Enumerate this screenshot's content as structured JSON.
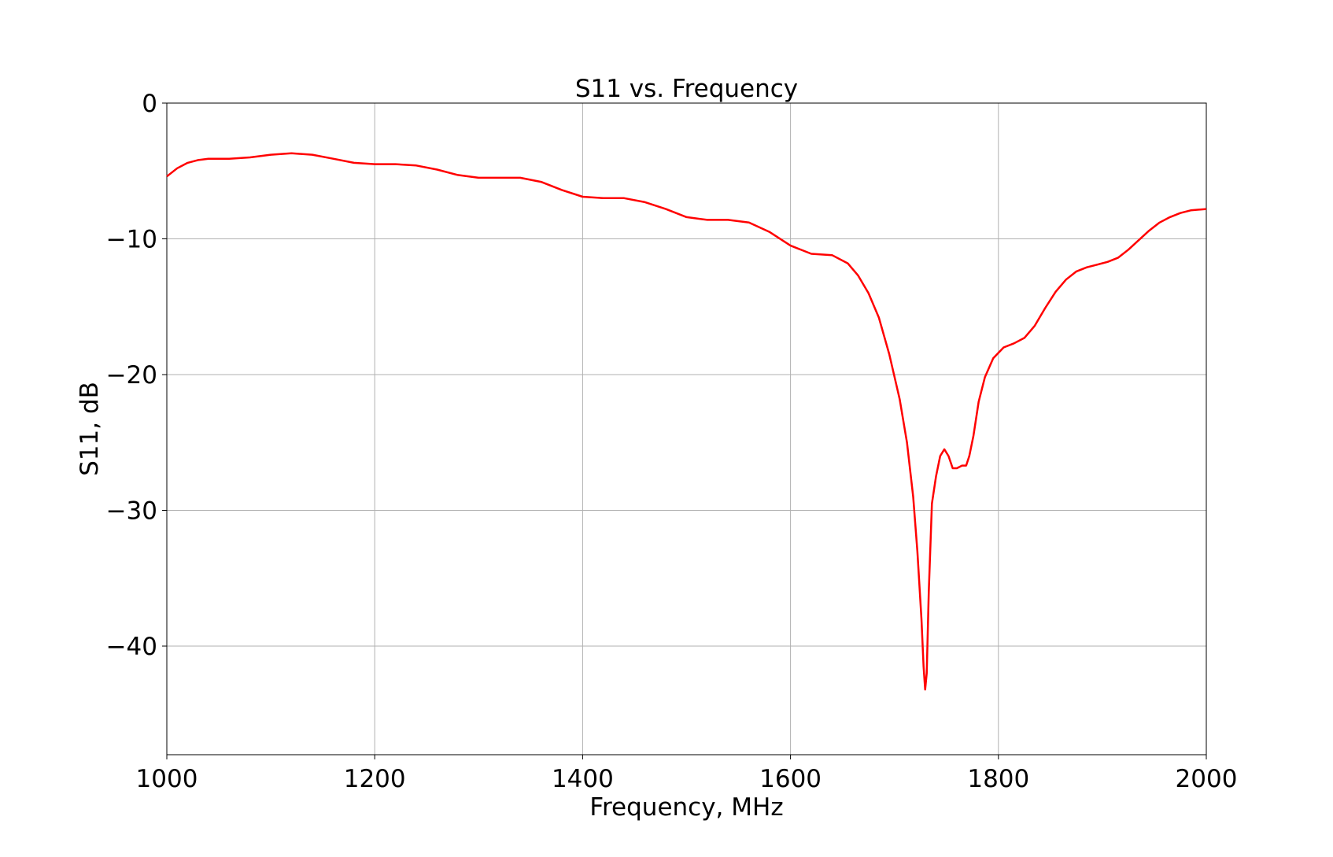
{
  "chart_data": {
    "type": "line",
    "title": "S11 vs. Frequency",
    "xlabel": "Frequency, MHz",
    "ylabel": "S11, dB",
    "xlim": [
      1000,
      2000
    ],
    "ylim": [
      -48,
      0
    ],
    "grid": true,
    "x_ticks": [
      {
        "value": 1000,
        "label": "1000"
      },
      {
        "value": 1200,
        "label": "1200"
      },
      {
        "value": 1400,
        "label": "1400"
      },
      {
        "value": 1600,
        "label": "1600"
      },
      {
        "value": 1800,
        "label": "1800"
      },
      {
        "value": 2000,
        "label": "2000"
      }
    ],
    "y_ticks": [
      {
        "value": 0,
        "label": "0"
      },
      {
        "value": -10,
        "label": "−10"
      },
      {
        "value": -20,
        "label": "−20"
      },
      {
        "value": -30,
        "label": "−30"
      },
      {
        "value": -40,
        "label": "−40"
      }
    ],
    "series": [
      {
        "color": "#ff0000",
        "points": [
          [
            1000,
            -5.4
          ],
          [
            1010,
            -4.8
          ],
          [
            1020,
            -4.4
          ],
          [
            1030,
            -4.2
          ],
          [
            1040,
            -4.1
          ],
          [
            1060,
            -4.1
          ],
          [
            1080,
            -4.0
          ],
          [
            1100,
            -3.8
          ],
          [
            1120,
            -3.7
          ],
          [
            1140,
            -3.8
          ],
          [
            1160,
            -4.1
          ],
          [
            1180,
            -4.4
          ],
          [
            1200,
            -4.5
          ],
          [
            1220,
            -4.5
          ],
          [
            1240,
            -4.6
          ],
          [
            1260,
            -4.9
          ],
          [
            1280,
            -5.3
          ],
          [
            1300,
            -5.5
          ],
          [
            1320,
            -5.5
          ],
          [
            1340,
            -5.5
          ],
          [
            1360,
            -5.8
          ],
          [
            1380,
            -6.4
          ],
          [
            1400,
            -6.9
          ],
          [
            1420,
            -7.0
          ],
          [
            1440,
            -7.0
          ],
          [
            1460,
            -7.3
          ],
          [
            1480,
            -7.8
          ],
          [
            1500,
            -8.4
          ],
          [
            1520,
            -8.6
          ],
          [
            1540,
            -8.6
          ],
          [
            1560,
            -8.8
          ],
          [
            1580,
            -9.5
          ],
          [
            1600,
            -10.5
          ],
          [
            1620,
            -11.1
          ],
          [
            1640,
            -11.2
          ],
          [
            1655,
            -11.8
          ],
          [
            1665,
            -12.7
          ],
          [
            1675,
            -14.0
          ],
          [
            1685,
            -15.8
          ],
          [
            1695,
            -18.5
          ],
          [
            1705,
            -21.8
          ],
          [
            1712,
            -25.0
          ],
          [
            1718,
            -29.0
          ],
          [
            1722,
            -33.0
          ],
          [
            1726,
            -38.0
          ],
          [
            1728,
            -41.5
          ],
          [
            1729.5,
            -43.2
          ],
          [
            1731,
            -42.0
          ],
          [
            1733,
            -36.0
          ],
          [
            1736,
            -29.5
          ],
          [
            1740,
            -27.5
          ],
          [
            1744,
            -26.0
          ],
          [
            1748,
            -25.5
          ],
          [
            1752,
            -26.0
          ],
          [
            1756,
            -26.9
          ],
          [
            1760,
            -26.9
          ],
          [
            1765,
            -26.7
          ],
          [
            1769,
            -26.7
          ],
          [
            1772,
            -26.0
          ],
          [
            1776,
            -24.5
          ],
          [
            1781,
            -22.0
          ],
          [
            1787,
            -20.2
          ],
          [
            1795,
            -18.8
          ],
          [
            1805,
            -18.0
          ],
          [
            1815,
            -17.7
          ],
          [
            1825,
            -17.3
          ],
          [
            1835,
            -16.4
          ],
          [
            1845,
            -15.1
          ],
          [
            1855,
            -13.9
          ],
          [
            1865,
            -13.0
          ],
          [
            1875,
            -12.4
          ],
          [
            1885,
            -12.1
          ],
          [
            1895,
            -11.9
          ],
          [
            1905,
            -11.7
          ],
          [
            1915,
            -11.4
          ],
          [
            1925,
            -10.8
          ],
          [
            1935,
            -10.1
          ],
          [
            1945,
            -9.4
          ],
          [
            1955,
            -8.8
          ],
          [
            1965,
            -8.4
          ],
          [
            1975,
            -8.1
          ],
          [
            1985,
            -7.9
          ],
          [
            2000,
            -7.8
          ]
        ]
      }
    ]
  }
}
